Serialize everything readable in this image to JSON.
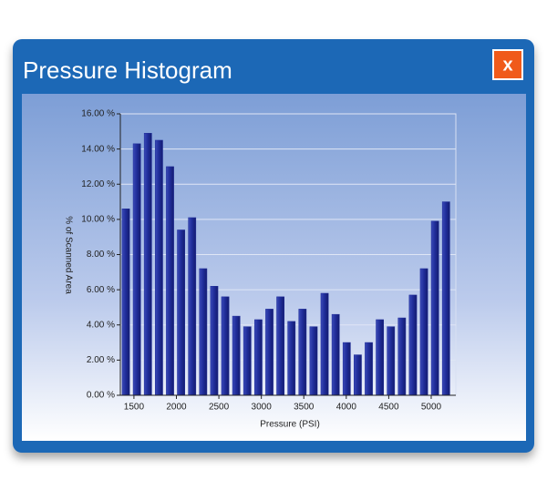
{
  "dialog": {
    "title": "Pressure Histogram",
    "close_label": "x"
  },
  "chart_data": {
    "type": "histogram",
    "xlabel": "Pressure (PSI)",
    "ylabel": "% of Scanned Area",
    "bins": [
      1340,
      1470,
      1600,
      1730,
      1860,
      1990,
      2120,
      2250,
      2380,
      2510,
      2640,
      2770,
      2900,
      3030,
      3160,
      3290,
      3420,
      3550,
      3680,
      3810,
      3940,
      4070,
      4200,
      4330,
      4460,
      4590,
      4720,
      4850,
      4980,
      5110,
      5240
    ],
    "values": [
      10.6,
      14.3,
      14.9,
      14.5,
      13.0,
      9.4,
      10.1,
      7.2,
      6.2,
      5.6,
      4.5,
      3.9,
      4.3,
      4.9,
      5.6,
      4.2,
      4.9,
      3.9,
      5.8,
      4.6,
      3.0,
      2.3,
      3.0,
      4.3,
      3.9,
      4.4,
      5.7,
      7.2,
      9.9,
      11.0
    ],
    "color": "#1f2c98",
    "xlim": [
      1340,
      5290
    ],
    "ylim": [
      0,
      16
    ],
    "xticks": [
      1500,
      2000,
      2500,
      3000,
      3500,
      4000,
      4500,
      5000
    ],
    "yticks": [
      {
        "value": 0,
        "label": "0.00 %"
      },
      {
        "value": 2,
        "label": "2.00 %"
      },
      {
        "value": 4,
        "label": "4.00 %"
      },
      {
        "value": 6,
        "label": "6.00 %"
      },
      {
        "value": 8,
        "label": "8.00 %"
      },
      {
        "value": 10,
        "label": "10.00 %"
      },
      {
        "value": 12,
        "label": "12.00 %"
      },
      {
        "value": 14,
        "label": "14.00 %"
      },
      {
        "value": 16,
        "label": "16.00 %"
      }
    ],
    "grid": true
  }
}
